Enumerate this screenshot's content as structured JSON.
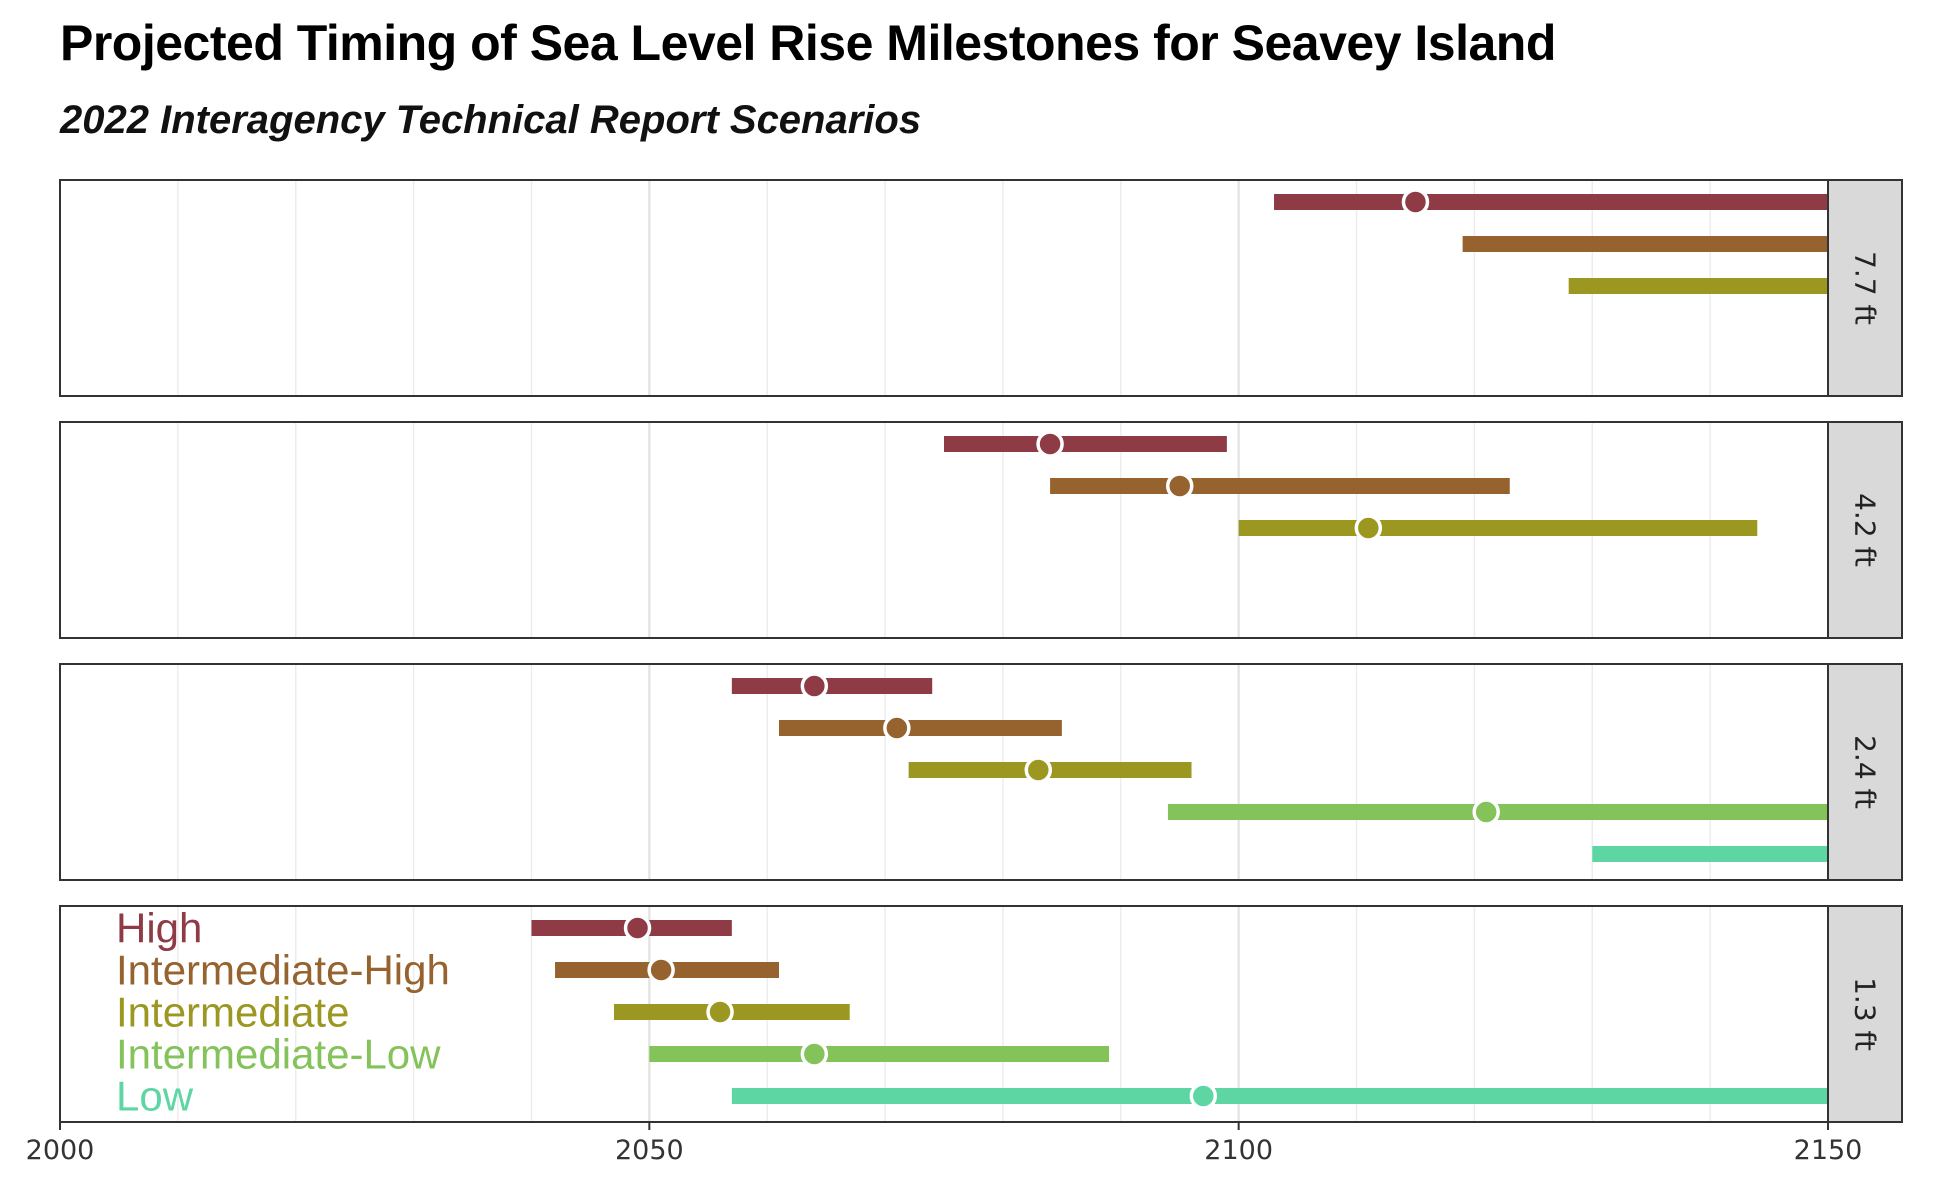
{
  "title": "Projected Timing of Sea Level Rise Milestones for Seavey Island",
  "subtitle": "2022 Interagency Technical Report Scenarios",
  "chart_data": {
    "type": "range-dot",
    "title": "Projected Timing of Sea Level Rise Milestones for Seavey Island",
    "subtitle": "2022 Interagency Technical Report Scenarios",
    "xlim": [
      2000,
      2150
    ],
    "x_ticks": [
      "2000",
      "2050",
      "2100",
      "2150"
    ],
    "grid": true,
    "legend_position": "inside-bottom-left",
    "scenarios": [
      {
        "name": "High",
        "color": "#8E3B46"
      },
      {
        "name": "Intermediate-High",
        "color": "#96632F"
      },
      {
        "name": "Intermediate",
        "color": "#9B9720"
      },
      {
        "name": "Intermediate-Low",
        "color": "#84C25A"
      },
      {
        "name": "Low",
        "color": "#5ED6A3"
      }
    ],
    "panels": [
      {
        "label": "7.7 ft",
        "ranges": [
          {
            "scenario": "High",
            "low": 2103,
            "median": 2115,
            "high": 2150
          },
          {
            "scenario": "Intermediate-High",
            "low": 2119,
            "median": null,
            "high": 2150
          },
          {
            "scenario": "Intermediate",
            "low": 2128,
            "median": null,
            "high": 2150
          }
        ]
      },
      {
        "label": "4.2 ft",
        "ranges": [
          {
            "scenario": "High",
            "low": 2075,
            "median": 2084,
            "high": 2099
          },
          {
            "scenario": "Intermediate-High",
            "low": 2084,
            "median": 2095,
            "high": 2123
          },
          {
            "scenario": "Intermediate",
            "low": 2100,
            "median": 2111,
            "high": 2144
          }
        ]
      },
      {
        "label": "2.4 ft",
        "ranges": [
          {
            "scenario": "High",
            "low": 2057,
            "median": 2064,
            "high": 2074
          },
          {
            "scenario": "Intermediate-High",
            "low": 2061,
            "median": 2071,
            "high": 2085
          },
          {
            "scenario": "Intermediate",
            "low": 2072,
            "median": 2083,
            "high": 2096
          },
          {
            "scenario": "Intermediate-Low",
            "low": 2094,
            "median": 2121,
            "high": 2150
          },
          {
            "scenario": "Low",
            "low": 2130,
            "median": null,
            "high": 2150
          }
        ]
      },
      {
        "label": "1.3 ft",
        "ranges": [
          {
            "scenario": "High",
            "low": 2040,
            "median": 2049,
            "high": 2057
          },
          {
            "scenario": "Intermediate-High",
            "low": 2042,
            "median": 2051,
            "high": 2061
          },
          {
            "scenario": "Intermediate",
            "low": 2047,
            "median": 2056,
            "high": 2067
          },
          {
            "scenario": "Intermediate-Low",
            "low": 2050,
            "median": 2064,
            "high": 2089
          },
          {
            "scenario": "Low",
            "low": 2057,
            "median": 2097,
            "high": 2150
          }
        ]
      }
    ]
  }
}
